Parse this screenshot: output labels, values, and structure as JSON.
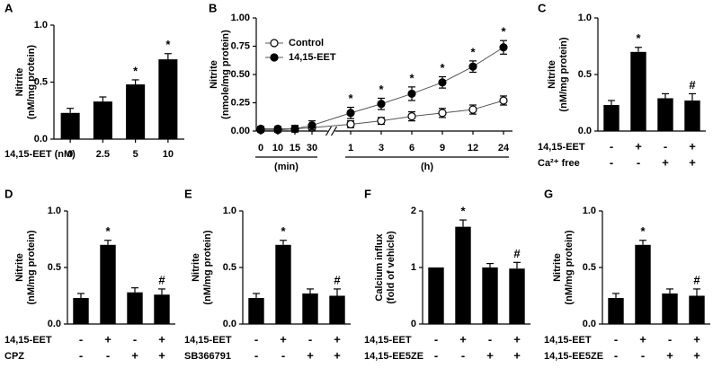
{
  "chart_data": [
    {
      "type": "bar",
      "panel": "A",
      "ylabel": [
        "Nitrite",
        "(nM/mg protein)"
      ],
      "xlabel": "14,15-EET (nM)",
      "categories": [
        "0",
        "2.5",
        "5",
        "10"
      ],
      "values": [
        0.23,
        0.33,
        0.48,
        0.7
      ],
      "errors": [
        0.04,
        0.04,
        0.04,
        0.05
      ],
      "annotations": [
        null,
        null,
        "*",
        "*"
      ],
      "color": "#000000",
      "ylim": [
        0,
        1.0
      ],
      "yticks": [
        {
          "value": 0,
          "label": "0.0"
        },
        {
          "value": 0.5,
          "label": "0.5"
        },
        {
          "value": 1.0,
          "label": "1.0"
        }
      ]
    },
    {
      "type": "line",
      "panel": "B",
      "ylabel": [
        "Nitrite",
        "(nmole/mg protein)"
      ],
      "groups": [
        {
          "label": "(min)",
          "categories": [
            "0",
            "10",
            "15",
            "30"
          ]
        },
        {
          "label": "(h)",
          "categories": [
            "1",
            "3",
            "6",
            "9",
            "12",
            "24"
          ]
        }
      ],
      "series": [
        {
          "name": "Control",
          "color": "#ffffff",
          "values": [
            0.01,
            0.01,
            0.02,
            0.03,
            0.06,
            0.09,
            0.13,
            0.16,
            0.19,
            0.27
          ],
          "errors": [
            0.02,
            0.02,
            0.02,
            0.03,
            0.03,
            0.03,
            0.04,
            0.04,
            0.04,
            0.04
          ],
          "annotations": [
            null,
            null,
            null,
            null,
            null,
            null,
            null,
            null,
            null,
            null
          ]
        },
        {
          "name": "14,15-EET",
          "color": "#000000",
          "values": [
            0.02,
            0.02,
            0.02,
            0.05,
            0.16,
            0.24,
            0.33,
            0.43,
            0.57,
            0.74
          ],
          "errors": [
            0.02,
            0.02,
            0.03,
            0.04,
            0.05,
            0.05,
            0.06,
            0.05,
            0.05,
            0.06
          ],
          "annotations": [
            null,
            null,
            null,
            null,
            "*",
            "*",
            "*",
            "*",
            "*",
            "*"
          ]
        }
      ],
      "legend": "upper left",
      "ylim": [
        0,
        1.0
      ],
      "yticks": [
        {
          "value": 0,
          "label": "0.00"
        },
        {
          "value": 0.25,
          "label": "0.25"
        },
        {
          "value": 0.5,
          "label": "0.50"
        },
        {
          "value": 0.75,
          "label": "0.75"
        },
        {
          "value": 1.0,
          "label": "1.00"
        }
      ]
    },
    {
      "type": "bar",
      "panel": "C",
      "ylabel": [
        "Nitrite",
        "(nM/mg protein)"
      ],
      "values": [
        0.23,
        0.7,
        0.29,
        0.27
      ],
      "errors": [
        0.04,
        0.04,
        0.04,
        0.06
      ],
      "annotations": [
        null,
        "*",
        null,
        "#"
      ],
      "color": "#000000",
      "ylim": [
        0,
        1.0
      ],
      "yticks": [
        {
          "value": 0,
          "label": "0.0"
        },
        {
          "value": 0.5,
          "label": "0.5"
        },
        {
          "value": 1.0,
          "label": "1.0"
        }
      ],
      "conditions": [
        {
          "label": "14,15-EET",
          "signs": [
            "-",
            "+",
            "-",
            "+"
          ]
        },
        {
          "label": "Ca²⁺ free",
          "signs": [
            "-",
            "-",
            "+",
            "+"
          ]
        }
      ]
    },
    {
      "type": "bar",
      "panel": "D",
      "ylabel": [
        "Nitrite",
        "(nM/mg protein)"
      ],
      "values": [
        0.23,
        0.7,
        0.28,
        0.26
      ],
      "errors": [
        0.04,
        0.04,
        0.04,
        0.05
      ],
      "annotations": [
        null,
        "*",
        null,
        "#"
      ],
      "color": "#000000",
      "ylim": [
        0,
        1.0
      ],
      "yticks": [
        {
          "value": 0,
          "label": "0.0"
        },
        {
          "value": 0.5,
          "label": "0.5"
        },
        {
          "value": 1.0,
          "label": "1.0"
        }
      ],
      "conditions": [
        {
          "label": "14,15-EET",
          "signs": [
            "-",
            "+",
            "-",
            "+"
          ]
        },
        {
          "label": "CPZ",
          "signs": [
            "-",
            "-",
            "+",
            "+"
          ]
        }
      ]
    },
    {
      "type": "bar",
      "panel": "E",
      "ylabel": [
        "Nitrite",
        "(nM/mg protein)"
      ],
      "values": [
        0.23,
        0.7,
        0.27,
        0.25
      ],
      "errors": [
        0.04,
        0.04,
        0.04,
        0.06
      ],
      "annotations": [
        null,
        "*",
        null,
        "#"
      ],
      "color": "#000000",
      "ylim": [
        0,
        1.0
      ],
      "yticks": [
        {
          "value": 0,
          "label": "0.0"
        },
        {
          "value": 0.5,
          "label": "0.5"
        },
        {
          "value": 1.0,
          "label": "1.0"
        }
      ],
      "conditions": [
        {
          "label": "14,15-EET",
          "signs": [
            "-",
            "+",
            "-",
            "+"
          ]
        },
        {
          "label": "SB366791",
          "signs": [
            "-",
            "-",
            "+",
            "+"
          ]
        }
      ]
    },
    {
      "type": "bar",
      "panel": "F",
      "ylabel": [
        "Calcium influx",
        "(fold of vehicle)"
      ],
      "values": [
        1.0,
        1.72,
        1.0,
        0.98
      ],
      "errors": [
        0,
        0.12,
        0.07,
        0.11
      ],
      "annotations": [
        null,
        "*",
        null,
        "#"
      ],
      "color": "#000000",
      "ylim": [
        0,
        2
      ],
      "yticks": [
        0,
        1,
        2
      ],
      "conditions": [
        {
          "label": "14,15-EET",
          "signs": [
            "-",
            "+",
            "-",
            "+"
          ]
        },
        {
          "label": "14,15-EE5ZE",
          "signs": [
            "-",
            "-",
            "+",
            "+"
          ]
        }
      ]
    },
    {
      "type": "bar",
      "panel": "G",
      "ylabel": [
        "Nitrite",
        "(nM/mg protein)"
      ],
      "values": [
        0.23,
        0.7,
        0.27,
        0.25
      ],
      "errors": [
        0.04,
        0.04,
        0.04,
        0.06
      ],
      "annotations": [
        null,
        "*",
        null,
        "#"
      ],
      "color": "#000000",
      "ylim": [
        0,
        1.0
      ],
      "yticks": [
        {
          "value": 0,
          "label": "0.0"
        },
        {
          "value": 0.5,
          "label": "0.5"
        },
        {
          "value": 1.0,
          "label": "1.0"
        }
      ],
      "conditions": [
        {
          "label": "14,15-EET",
          "signs": [
            "-",
            "+",
            "-",
            "+"
          ]
        },
        {
          "label": "14,15-EE5ZE",
          "signs": [
            "-",
            "-",
            "+",
            "+"
          ]
        }
      ]
    }
  ]
}
